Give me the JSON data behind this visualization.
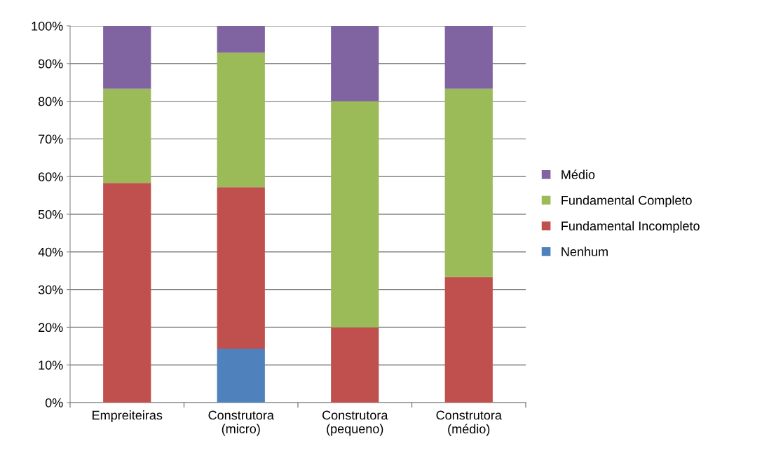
{
  "chart_data": {
    "type": "bar",
    "stacked": true,
    "categories": [
      "Empreiteiras",
      "Construtora\n(micro)",
      "Construtora\n(pequeno)",
      "Construtora\n(médio)"
    ],
    "series": [
      {
        "name": "Nenhum",
        "color": "#4f81bd",
        "values": [
          0,
          14.3,
          0,
          0
        ]
      },
      {
        "name": "Fundamental Incompleto",
        "color": "#c0504d",
        "values": [
          58.3,
          42.9,
          20,
          33.3
        ]
      },
      {
        "name": "Fundamental Completo",
        "color": "#9bbb59",
        "values": [
          25,
          35.7,
          60,
          50
        ]
      },
      {
        "name": "Médio",
        "color": "#8064a2",
        "values": [
          16.7,
          7.1,
          20,
          16.7
        ]
      }
    ],
    "ylim": [
      0,
      100
    ],
    "yticks": [
      {
        "value": 0,
        "label": "0%"
      },
      {
        "value": 10,
        "label": "10%"
      },
      {
        "value": 20,
        "label": "20%"
      },
      {
        "value": 30,
        "label": "30%"
      },
      {
        "value": 40,
        "label": "40%"
      },
      {
        "value": 50,
        "label": "50%"
      },
      {
        "value": 60,
        "label": "60%"
      },
      {
        "value": 70,
        "label": "70%"
      },
      {
        "value": 80,
        "label": "80%"
      },
      {
        "value": 90,
        "label": "90%"
      },
      {
        "value": 100,
        "label": "100%"
      }
    ],
    "grid": "y",
    "legend": "right"
  }
}
